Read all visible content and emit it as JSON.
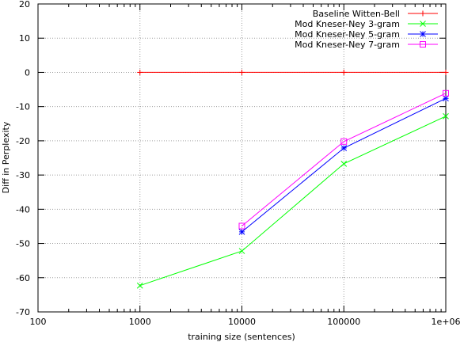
{
  "chart_data": {
    "type": "line",
    "title": "",
    "xlabel": "training size (sentences)",
    "ylabel": "Diff in Perplexity",
    "x_scale": "log",
    "xlim": [
      100,
      1000000
    ],
    "ylim": [
      -70,
      20
    ],
    "x_ticks": [
      {
        "value": 100,
        "label": "100"
      },
      {
        "value": 1000,
        "label": "1000"
      },
      {
        "value": 10000,
        "label": "10000"
      },
      {
        "value": 100000,
        "label": "100000"
      },
      {
        "value": 1000000,
        "label": "1e+06"
      }
    ],
    "y_ticks": [
      {
        "value": 20,
        "label": "20"
      },
      {
        "value": 10,
        "label": "10"
      },
      {
        "value": 0,
        "label": "0"
      },
      {
        "value": -10,
        "label": "-10"
      },
      {
        "value": -20,
        "label": "-20"
      },
      {
        "value": -30,
        "label": "-30"
      },
      {
        "value": -40,
        "label": "-40"
      },
      {
        "value": -50,
        "label": "-50"
      },
      {
        "value": -60,
        "label": "-60"
      },
      {
        "value": -70,
        "label": "-70"
      }
    ],
    "grid": true,
    "legend_position": "top-right",
    "series": [
      {
        "name": "Baseline Witten-Bell",
        "color": "#ff0000",
        "marker": "plus",
        "x": [
          1000,
          10000,
          100000,
          1000000
        ],
        "y": [
          0,
          0,
          0,
          0
        ]
      },
      {
        "name": "Mod Kneser-Ney 3-gram",
        "color": "#00ff00",
        "marker": "cross",
        "x": [
          1000,
          10000,
          100000,
          1000000
        ],
        "y": [
          -62.3,
          -52.2,
          -26.7,
          -12.8
        ]
      },
      {
        "name": "Mod Kneser-Ney 5-gram",
        "color": "#0000ff",
        "marker": "star",
        "x": [
          10000,
          100000,
          1000000
        ],
        "y": [
          -46.6,
          -22.1,
          -7.6
        ]
      },
      {
        "name": "Mod Kneser-Ney 7-gram",
        "color": "#ff00ff",
        "marker": "square",
        "x": [
          10000,
          100000,
          1000000
        ],
        "y": [
          -44.9,
          -20.2,
          -6.1
        ]
      }
    ]
  }
}
